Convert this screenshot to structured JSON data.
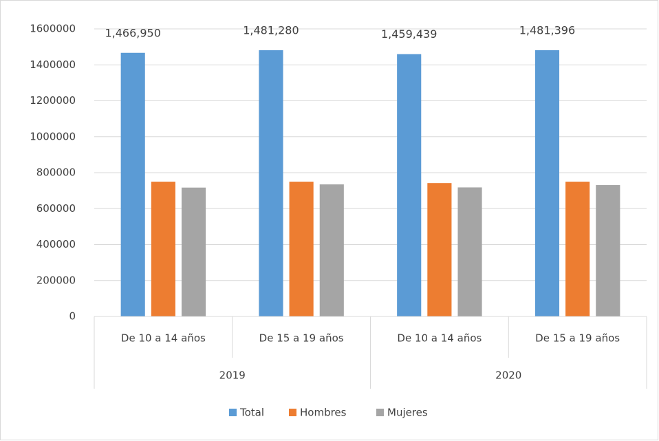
{
  "chart_data": {
    "type": "bar",
    "groups": [
      {
        "name": "2019",
        "categories": [
          "De 10 a 14 años",
          "De 15 a 19 años"
        ]
      },
      {
        "name": "2020",
        "categories": [
          "De 10 a 14 años",
          "De 15 a 19 años"
        ]
      }
    ],
    "series": [
      {
        "name": "Total",
        "color": "#5b9bd5",
        "values": [
          1466950,
          1481280,
          1459439,
          1481396
        ],
        "value_labels": [
          "1,466,950",
          "1,481,280",
          "1,459,439",
          "1,481,396"
        ]
      },
      {
        "name": "Hombres",
        "color": "#ed7d31",
        "values": [
          750000,
          750000,
          742000,
          750000
        ]
      },
      {
        "name": "Mujeres",
        "color": "#a5a5a5",
        "values": [
          717000,
          735000,
          718000,
          731000
        ]
      }
    ],
    "ylim": [
      0,
      1600000
    ],
    "yticks": [
      0,
      200000,
      400000,
      600000,
      800000,
      1000000,
      1200000,
      1400000,
      1600000
    ],
    "grid": true,
    "legend": "bottom"
  }
}
